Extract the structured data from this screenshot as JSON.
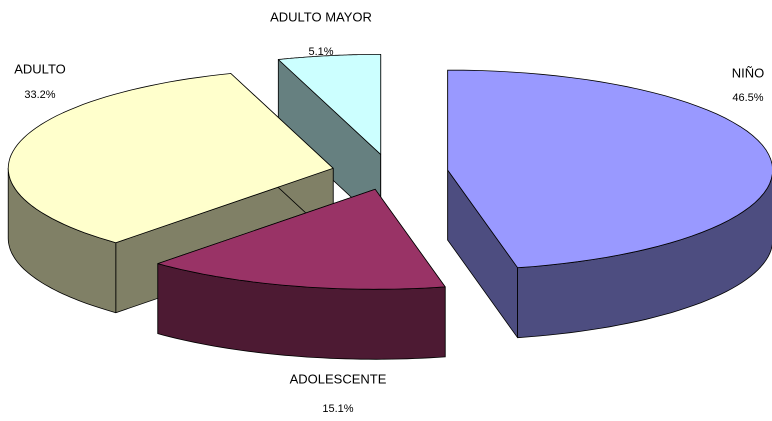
{
  "chart_data": {
    "type": "pie3d",
    "categories": [
      "NIÑO",
      "ADOLESCENTE",
      "ADULTO",
      "ADULTO MAYOR"
    ],
    "values": [
      46.5,
      15.1,
      33.2,
      5.1
    ],
    "value_labels": [
      "46.5%",
      "15.1%",
      "33.2%",
      "5.1%"
    ],
    "colors": [
      "#9999ff",
      "#993366",
      "#ffffcc",
      "#ccffff"
    ],
    "side_colors": [
      "#4d4d80",
      "#4d1a33",
      "#808066",
      "#668080"
    ]
  }
}
